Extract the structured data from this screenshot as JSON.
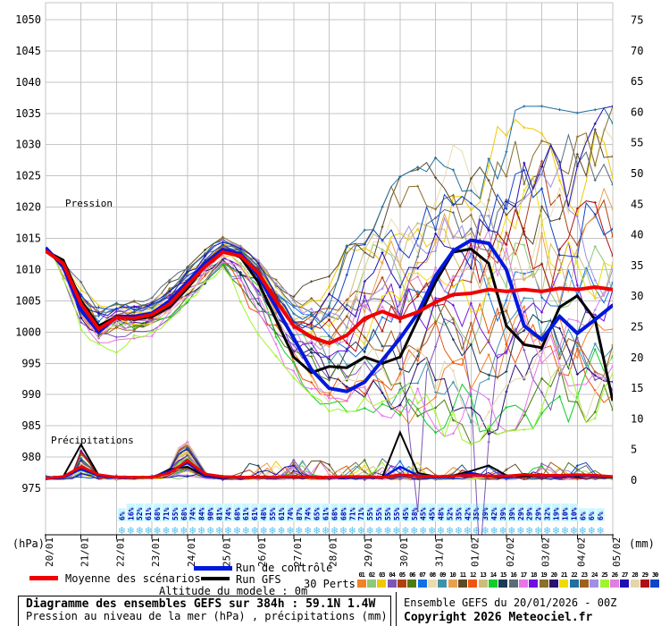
{
  "chart_data": {
    "type": "line",
    "title": "Diagramme des ensembles GEFS sur 384h : 59.1N 1.4W",
    "subtitle": "Pression au niveau de la mer (hPa) , précipitations (mm)",
    "x_dates": [
      "20/01",
      "21/01",
      "22/01",
      "23/01",
      "24/01",
      "25/01",
      "26/01",
      "27/01",
      "28/01",
      "29/01",
      "30/01",
      "31/01",
      "01/02",
      "02/02",
      "03/02",
      "04/02",
      "05/02"
    ],
    "left_axis": {
      "unit": "(hPa)",
      "min": 975,
      "max": 1050,
      "step": 5
    },
    "right_axis": {
      "unit": "(mm)",
      "min": 0,
      "max": 75,
      "step": 5
    },
    "labels": {
      "pressure": "Pression",
      "precip": "Précipitations"
    },
    "snow_probability_percent": {
      "start_day_offset": 2.15,
      "step_days": 0.25,
      "values": [
        6,
        16,
        52,
        61,
        68,
        71,
        55,
        68,
        74,
        84,
        90,
        81,
        74,
        68,
        61,
        61,
        48,
        55,
        61,
        74,
        87,
        74,
        65,
        61,
        68,
        68,
        71,
        71,
        55,
        55,
        55,
        55,
        45,
        58,
        45,
        45,
        48,
        52,
        35,
        42,
        35,
        39,
        42,
        39,
        39,
        29,
        29,
        29,
        32,
        19,
        10,
        10,
        6,
        6,
        6
      ]
    },
    "step_days": 0.5,
    "mean_pressure": [
      1013,
      1011,
      1004.5,
      1000.5,
      1002.3,
      1002.2,
      1002.8,
      1004.5,
      1007.5,
      1010.5,
      1012.8,
      1012.2,
      1009.5,
      1005,
      1001,
      999.2,
      998.2,
      999.5,
      1002.2,
      1003.3,
      1002.2,
      1003.2,
      1004.8,
      1006,
      1006.2,
      1006.8,
      1006.5,
      1006.8,
      1006.5,
      1007,
      1006.8,
      1007.2,
      1006.8
    ],
    "control_pressure": [
      1013.5,
      1010.5,
      1003.5,
      1000,
      1002.5,
      1002.5,
      1003,
      1005,
      1008,
      1011,
      1013.2,
      1012.5,
      1009,
      1004,
      999,
      994,
      991,
      990.5,
      992,
      995.5,
      999,
      1003,
      1009,
      1013,
      1014.7,
      1014.2,
      1010,
      1001,
      998.8,
      1002.5,
      999.8,
      1002,
      1004.3
    ],
    "gfs_pressure": [
      1013,
      1011.5,
      1005,
      1001,
      1002.5,
      1002,
      1002.5,
      1004,
      1007,
      1010.5,
      1013,
      1012,
      1008,
      1002,
      996,
      993.5,
      994.5,
      994.3,
      996,
      995,
      996,
      1002,
      1008,
      1012.8,
      1013.3,
      1011,
      1001,
      998,
      997.5,
      1004,
      1005.8,
      1002,
      989
    ],
    "envelope_max_daily": [
      1013.5,
      1009,
      1005.5,
      1006.5,
      1011,
      1015.5,
      1012,
      1007,
      1008.5,
      1018,
      1024,
      1027,
      1031,
      1035,
      1035,
      1034,
      1035
    ],
    "envelope_min_daily": [
      1012.5,
      998,
      996.5,
      999,
      1004,
      1009.5,
      1000,
      993,
      987.5,
      988,
      986.5,
      984.5,
      983,
      985,
      985.5,
      986,
      987.5
    ],
    "mean_precip": [
      0.3,
      0.6,
      2.2,
      0.9,
      0.5,
      0.5,
      0.5,
      1.2,
      3.2,
      1.0,
      0.6,
      0.5,
      0.5,
      0.5,
      0.6,
      0.5,
      0.5,
      0.6,
      0.6,
      0.5,
      0.9,
      0.7,
      0.6,
      0.7,
      0.8,
      0.7,
      0.7,
      0.9,
      0.8,
      0.8,
      0.9,
      0.8,
      0.6
    ],
    "control_precip": [
      0.2,
      0.5,
      1.8,
      0.7,
      0.4,
      0.4,
      0.5,
      1.5,
      2.8,
      0.8,
      0.5,
      0.4,
      0.5,
      0.4,
      0.5,
      0.6,
      0.4,
      0.5,
      0.5,
      0.4,
      2.2,
      0.8,
      0.5,
      0.6,
      1.2,
      0.6,
      0.5,
      1.0,
      0.7,
      0.6,
      0.8,
      0.6,
      0.5
    ],
    "gfs_precip": [
      0.2,
      0.6,
      5.8,
      0.8,
      0.4,
      0.4,
      0.4,
      1.8,
      2.2,
      0.7,
      0.4,
      0.4,
      0.4,
      0.5,
      0.5,
      0.5,
      0.4,
      0.5,
      0.6,
      0.5,
      7.8,
      1.2,
      0.6,
      0.8,
      1.5,
      2.4,
      0.8,
      0.6,
      0.9,
      0.7,
      0.6,
      0.7,
      0.5
    ],
    "members": {
      "count": 30,
      "labels": [
        "01",
        "02",
        "03",
        "04",
        "05",
        "06",
        "07",
        "08",
        "09",
        "10",
        "11",
        "12",
        "13",
        "14",
        "15",
        "16",
        "17",
        "18",
        "19",
        "20",
        "21",
        "22",
        "23",
        "24",
        "25",
        "26",
        "27",
        "28",
        "29",
        "30"
      ],
      "colors": [
        "#f08228",
        "#8fc878",
        "#f0c800",
        "#7d55b5",
        "#b04010",
        "#4d7d10",
        "#1070e8",
        "#e8dcb0",
        "#3f93a8",
        "#e8a050",
        "#5a4a28",
        "#f05510",
        "#cdbd7a",
        "#10cd28",
        "#1a3a55",
        "#5a6a78",
        "#e875e8",
        "#7010e0",
        "#8a6f2d",
        "#2a1070",
        "#f0dc00",
        "#1f6f9f",
        "#9f5f1f",
        "#9f8fe5",
        "#9ff52d",
        "#df7fdf",
        "#1f10b0",
        "#e5d5ad",
        "#b01010",
        "#1045c5"
      ]
    }
  },
  "legend": {
    "mean": "Moyenne des scénarios",
    "control": "Run de contrôle",
    "gfs": "Run GFS",
    "perts": "30 Perts.",
    "altitude": "Altitude du modele : 0m"
  },
  "footer": {
    "run_info": "Ensemble GEFS du 20/01/2026 - 00Z",
    "copyright": "Copyright 2026 Meteociel.fr"
  },
  "colors": {
    "mean": "#f00000",
    "control": "#0018dd",
    "gfs": "#000000",
    "grid": "#c4c4c4",
    "axis": "#000000",
    "percent_text": "#0000b4",
    "percent_bg": "#c9f7ff",
    "snowflake": "#56c2ee"
  },
  "seed": 11
}
